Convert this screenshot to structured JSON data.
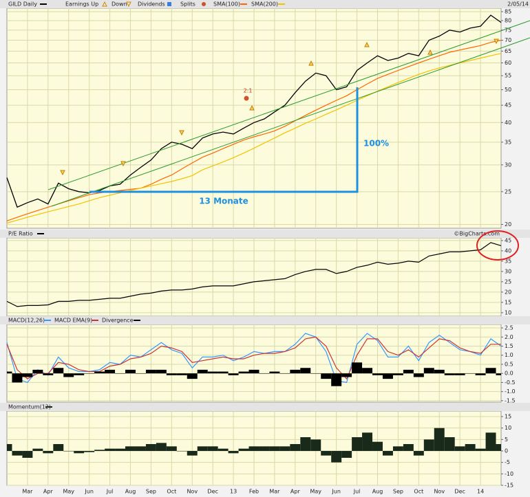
{
  "chart_data": [
    {
      "type": "line",
      "log_scale": true,
      "date": "2/05/14",
      "legend_extra": [
        "Earnings Up",
        "Down",
        "Dividends",
        "Splits"
      ],
      "annotations": [
        "13 Monate",
        "100%",
        "2:1"
      ],
      "ylim": [
        19.5,
        87
      ],
      "yticks": [
        20,
        25,
        30,
        35,
        40,
        45,
        50,
        55,
        60,
        65,
        70,
        75,
        80,
        85
      ],
      "grid": true,
      "series": [
        {
          "name": "GILD Daily",
          "color": "#000000",
          "values": [
            27.5,
            22.5,
            23.2,
            23.8,
            23.0,
            26.5,
            25.5,
            25.0,
            24.8,
            25.2,
            26.0,
            26.3,
            28.0,
            29.5,
            31.0,
            33.5,
            35.0,
            34.5,
            33.5,
            36.0,
            37.0,
            37.5,
            37.0,
            38.5,
            40.0,
            41.0,
            43.0,
            45.0,
            49.0,
            53.0,
            56.0,
            55.0,
            50.0,
            51.0,
            57.0,
            60.0,
            63.0,
            61.0,
            62.0,
            64.0,
            63.0,
            70.0,
            72.0,
            75.0,
            74.0,
            76.0,
            77.0,
            83.0,
            79.0
          ]
        },
        {
          "name": "SMA(100)",
          "color": "#ff6600",
          "values": [
            20.5,
            21,
            21.5,
            22,
            22.5,
            23,
            23.5,
            24,
            24.5,
            24.8,
            25,
            25.2,
            25.4,
            25.6,
            26.3,
            27.2,
            28,
            29.2,
            30.4,
            31.6,
            32.5,
            33.5,
            34.5,
            35.5,
            36.3,
            37,
            37.8,
            39,
            40.5,
            42,
            43.5,
            45,
            46.5,
            48,
            50,
            52,
            54,
            55.5,
            57,
            58.5,
            60,
            61.5,
            63,
            64.5,
            65.5,
            66.5,
            67.5,
            69,
            70
          ]
        },
        {
          "name": "SMA(200)",
          "color": "#f2c200",
          "values": [
            20.2,
            20.6,
            21,
            21.4,
            21.8,
            22.2,
            22.6,
            23,
            23.5,
            24,
            24.4,
            24.8,
            25.2,
            25.6,
            26,
            26.4,
            26.8,
            27.3,
            27.9,
            29,
            29.8,
            30.6,
            31.5,
            32.5,
            33.6,
            34.8,
            36,
            37.3,
            38.5,
            39.8,
            41,
            42.3,
            43.6,
            45,
            46.5,
            48,
            49.5,
            51,
            52.5,
            54,
            55.5,
            56.8,
            58,
            59,
            60,
            61,
            62,
            63,
            64
          ]
        }
      ]
    },
    {
      "type": "line",
      "source": "©BigCharts.com",
      "ylim": [
        8.3,
        46.3
      ],
      "yticks": [
        10,
        15,
        20,
        25,
        30,
        35,
        40,
        45
      ],
      "grid": true,
      "series": [
        {
          "name": "P/E Ratio",
          "color": "#000000",
          "values": [
            15.5,
            13,
            13.5,
            13.5,
            13.8,
            15.5,
            15.5,
            16,
            16,
            16.5,
            17,
            17,
            18,
            19,
            19.5,
            20.5,
            21,
            21,
            21.5,
            22.5,
            23,
            23,
            23,
            24,
            25,
            25.5,
            26,
            26.5,
            28.5,
            30,
            31,
            31,
            29,
            30,
            32,
            33,
            34.5,
            33.5,
            34,
            35,
            34.5,
            37.5,
            38.5,
            39.5,
            39.5,
            40,
            40.5,
            44,
            42.5
          ]
        }
      ]
    },
    {
      "type": "line",
      "ylim": [
        -1.58,
        2.69
      ],
      "yticks": [
        2.5,
        {
          "value": 2,
          "label": "2.0"
        },
        1.5,
        {
          "value": 1,
          "label": "1.0"
        },
        0.5,
        {
          "value": 0,
          "label": "0.0"
        },
        -0.5,
        {
          "value": -1,
          "label": "-1.0"
        },
        -1.5
      ],
      "grid": true,
      "series": [
        {
          "name": "MACD(12,26)",
          "color": "#3399ff",
          "values": [
            1.7,
            -0.3,
            -0.5,
            0.2,
            -0.1,
            0.9,
            0.3,
            0.1,
            0.1,
            0.2,
            0.6,
            0.5,
            1.0,
            0.9,
            1.3,
            1.7,
            1.3,
            1.1,
            0.3,
            0.9,
            0.9,
            1.0,
            0.7,
            0.9,
            1.2,
            1.1,
            1.2,
            1.2,
            1.6,
            2.2,
            2.0,
            1.2,
            -0.4,
            -0.5,
            1.6,
            2.2,
            1.8,
            0.9,
            0.9,
            1.5,
            0.7,
            1.7,
            2.1,
            1.7,
            1.3,
            1.2,
            1.0,
            1.9,
            1.5
          ]
        },
        {
          "name": "MACD EMA(9)",
          "color": "#cc3333",
          "values": [
            1.6,
            0.2,
            -0.3,
            0.0,
            0.0,
            0.6,
            0.5,
            0.2,
            0.1,
            0.1,
            0.4,
            0.5,
            0.8,
            0.9,
            1.1,
            1.5,
            1.4,
            1.2,
            0.6,
            0.7,
            0.8,
            0.9,
            0.8,
            0.8,
            1.0,
            1.1,
            1.1,
            1.2,
            1.4,
            1.9,
            2.0,
            1.5,
            0.3,
            -0.3,
            1.0,
            1.9,
            1.9,
            1.2,
            1.0,
            1.3,
            0.9,
            1.4,
            1.9,
            1.8,
            1.4,
            1.2,
            1.1,
            1.6,
            1.6
          ]
        },
        {
          "name": "Divergence",
          "color": "#000000",
          "style": "area",
          "values": [
            0.1,
            -0.5,
            -0.2,
            0.2,
            -0.1,
            0.3,
            -0.2,
            -0.1,
            0,
            0.1,
            0.2,
            0,
            0.2,
            0,
            0.2,
            0.2,
            -0.1,
            -0.1,
            -0.3,
            0.2,
            0.1,
            0.1,
            -0.1,
            0.1,
            0.2,
            0,
            0.1,
            0,
            0.2,
            0.3,
            0,
            -0.3,
            -0.7,
            -0.2,
            0.6,
            0.3,
            -0.1,
            -0.3,
            -0.1,
            0.2,
            -0.2,
            0.3,
            0.2,
            -0.1,
            -0.1,
            0,
            -0.1,
            0.3,
            -0.1
          ]
        }
      ]
    },
    {
      "type": "area",
      "ylim": [
        -15,
        17.4
      ],
      "yticks": [
        15,
        10,
        5,
        0,
        -5,
        -10,
        -15
      ],
      "grid": true,
      "categories": [
        null,
        null,
        "Mar",
        null,
        "Apr",
        null,
        "May",
        null,
        "Jun",
        null,
        "Jul",
        null,
        "Aug",
        null,
        "Sep",
        null,
        "Oct",
        null,
        "Nov",
        null,
        "Dec",
        null,
        "13",
        null,
        "Feb",
        null,
        "Mar",
        null,
        "Apr",
        null,
        "May",
        null,
        "Jun",
        null,
        "Jul",
        null,
        "Aug",
        null,
        "Sep",
        null,
        "Oct",
        null,
        "Nov",
        null,
        "Dec",
        null,
        "14",
        null,
        null
      ],
      "series": [
        {
          "name": "Momentum(12)",
          "color": "#1a2a1a",
          "style": "area",
          "values": [
            3,
            -2,
            -3,
            1,
            -1,
            3,
            0,
            -1,
            -0.5,
            0.5,
            1,
            1,
            2,
            2,
            3,
            3.5,
            2,
            0,
            -2,
            2,
            2,
            1,
            -1,
            1,
            2,
            2,
            2,
            2,
            3,
            6,
            5,
            -2,
            -5,
            -3,
            6,
            8,
            4,
            -2,
            2,
            3,
            -2,
            5,
            10,
            6,
            2,
            3,
            1,
            8,
            3
          ]
        }
      ]
    }
  ]
}
